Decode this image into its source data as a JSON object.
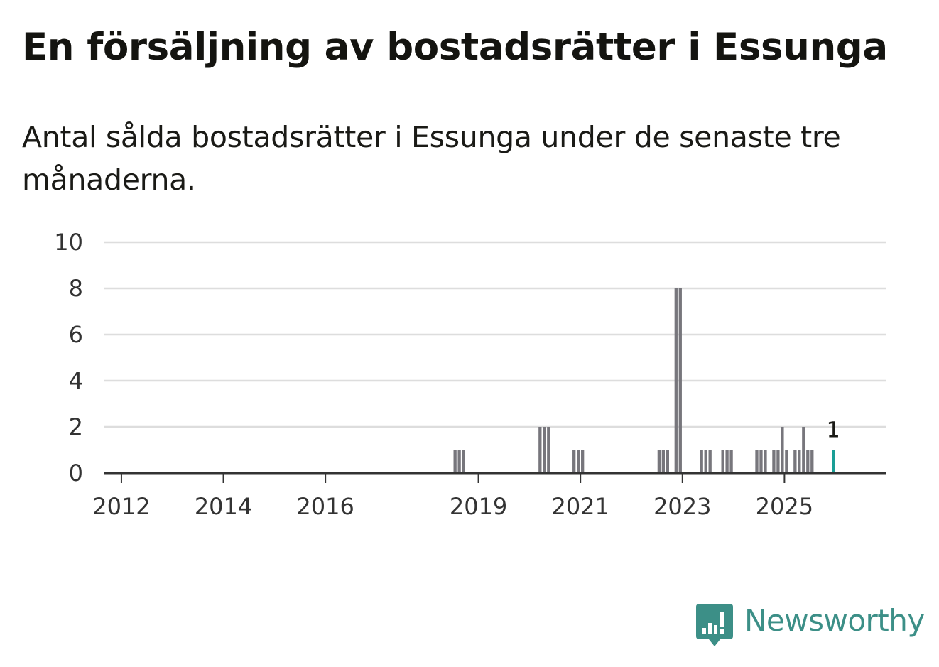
{
  "title": "En försäljning av bostadsrätter i Essunga",
  "subtitle": "Antal sålda bostadsrätter i Essunga under de senaste tre månaderna.",
  "brand": {
    "name": "Newsworthy",
    "icon": "newsworthy-chart-icon",
    "color": "#3c8f87"
  },
  "chart_data": {
    "type": "bar",
    "title": "En försäljning av bostadsrätter i Essunga",
    "subtitle": "Antal sålda bostadsrätter i Essunga under de senaste tre månaderna.",
    "xlabel": "",
    "ylabel": "",
    "ylim": [
      0,
      10
    ],
    "yticks": [
      0,
      2,
      4,
      6,
      8,
      10
    ],
    "xlim": [
      "2011-09",
      "2026-12"
    ],
    "xticks": [
      {
        "label": "2012",
        "date": "2012-01"
      },
      {
        "label": "2014",
        "date": "2014-01"
      },
      {
        "label": "2016",
        "date": "2016-01"
      },
      {
        "label": "2019",
        "date": "2019-01"
      },
      {
        "label": "2021",
        "date": "2021-01"
      },
      {
        "label": "2023",
        "date": "2023-01"
      },
      {
        "label": "2025",
        "date": "2025-01"
      }
    ],
    "grid": true,
    "colors": {
      "bar": "#77767c",
      "highlight": "#1a9e96",
      "grid": "#dddddd",
      "axis": "#333333"
    },
    "series": [
      {
        "points": [
          {
            "date": "2018-07",
            "value": 1
          },
          {
            "date": "2018-08",
            "value": 1
          },
          {
            "date": "2018-09",
            "value": 1
          },
          {
            "date": "2020-03",
            "value": 2
          },
          {
            "date": "2020-04",
            "value": 2
          },
          {
            "date": "2020-05",
            "value": 2
          },
          {
            "date": "2020-11",
            "value": 1
          },
          {
            "date": "2020-12",
            "value": 1
          },
          {
            "date": "2021-01",
            "value": 1
          },
          {
            "date": "2022-07",
            "value": 1
          },
          {
            "date": "2022-08",
            "value": 1
          },
          {
            "date": "2022-09",
            "value": 1
          },
          {
            "date": "2022-11",
            "value": 8
          },
          {
            "date": "2022-12",
            "value": 8
          },
          {
            "date": "2023-05",
            "value": 1
          },
          {
            "date": "2023-06",
            "value": 1
          },
          {
            "date": "2023-07",
            "value": 1
          },
          {
            "date": "2023-10",
            "value": 1
          },
          {
            "date": "2023-11",
            "value": 1
          },
          {
            "date": "2023-12",
            "value": 1
          },
          {
            "date": "2024-06",
            "value": 1
          },
          {
            "date": "2024-07",
            "value": 1
          },
          {
            "date": "2024-08",
            "value": 1
          },
          {
            "date": "2024-10",
            "value": 1
          },
          {
            "date": "2024-11",
            "value": 1
          },
          {
            "date": "2024-12",
            "value": 2
          },
          {
            "date": "2025-01",
            "value": 1
          },
          {
            "date": "2025-03",
            "value": 1
          },
          {
            "date": "2025-04",
            "value": 1
          },
          {
            "date": "2025-05",
            "value": 2
          },
          {
            "date": "2025-06",
            "value": 1
          },
          {
            "date": "2025-07",
            "value": 1
          },
          {
            "date": "2025-12",
            "value": 1,
            "highlight": true,
            "label": "1"
          }
        ]
      }
    ]
  }
}
